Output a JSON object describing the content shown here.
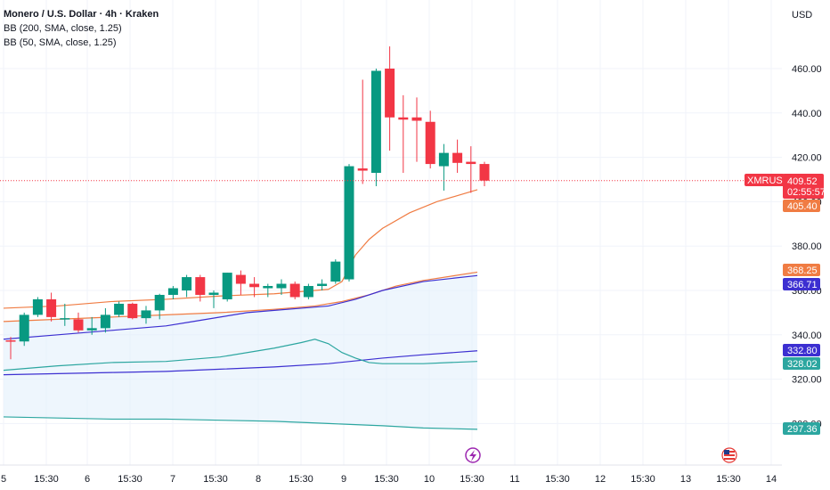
{
  "header": {
    "symbol_line": "Monero / U.S. Dollar · 4h · Kraken",
    "indicator_1": "BB (200, SMA, close, 1.25)",
    "indicator_2": "BB (50, SMA, close, 1.25)"
  },
  "axis": {
    "currency": "USD",
    "y_ticks": [
      "460.00",
      "440.00",
      "420.00",
      "400.00",
      "380.00",
      "360.00",
      "340.00",
      "320.00",
      "300.00"
    ],
    "x_ticks": [
      "5",
      "15:30",
      "6",
      "15:30",
      "7",
      "15:30",
      "8",
      "15:30",
      "9",
      "15:30",
      "10",
      "15:30",
      "11",
      "15:30",
      "12",
      "15:30",
      "13",
      "15:30",
      "14"
    ]
  },
  "badges": {
    "symbol": "XMRUSD",
    "last_price": "409.52",
    "countdown": "02:55:57",
    "bb50_upper": "405.40",
    "bb200_upper": "368.25",
    "bb50_mid": "366.71",
    "bb200_mid": "332.80",
    "bb50_lower": "328.02",
    "bb200_lower": "297.36"
  },
  "colors": {
    "up": "#089981",
    "down": "#f23645",
    "bb50": "#2ca6a0",
    "bb200": "#f07c43",
    "bbmid": "#3c2fd1",
    "fill": "#e3f0fb",
    "grid": "#f0f3fa",
    "last": "#f23645"
  },
  "events": {
    "event_icon": "lightning-icon",
    "flag_icon": "us-flag-icon"
  },
  "chart_data": {
    "type": "candlestick",
    "x_ticks": [
      "5",
      "15:30",
      "6",
      "15:30",
      "7",
      "15:30",
      "8",
      "15:30",
      "9",
      "15:30",
      "10",
      "15:30",
      "11",
      "15:30",
      "12",
      "15:30",
      "13",
      "15:30",
      "14"
    ],
    "ylim": [
      290,
      475
    ],
    "candles": [
      {
        "o": 337.5,
        "h": 339.0,
        "l": 329.0,
        "c": 337.0
      },
      {
        "o": 337.0,
        "h": 350.0,
        "l": 335.0,
        "c": 349.0
      },
      {
        "o": 349.0,
        "h": 357.0,
        "l": 348.0,
        "c": 356.0
      },
      {
        "o": 356.0,
        "h": 359.0,
        "l": 346.0,
        "c": 348.0
      },
      {
        "o": 347.0,
        "h": 354.0,
        "l": 344.0,
        "c": 347.5
      },
      {
        "o": 347.0,
        "h": 350.0,
        "l": 341.0,
        "c": 342.0
      },
      {
        "o": 342.0,
        "h": 348.0,
        "l": 340.0,
        "c": 343.0
      },
      {
        "o": 343.0,
        "h": 352.0,
        "l": 341.0,
        "c": 349.0
      },
      {
        "o": 349.0,
        "h": 355.0,
        "l": 348.0,
        "c": 354.0
      },
      {
        "o": 354.0,
        "h": 354.5,
        "l": 347.0,
        "c": 347.5
      },
      {
        "o": 347.5,
        "h": 353.0,
        "l": 345.0,
        "c": 351.0
      },
      {
        "o": 351.0,
        "h": 358.5,
        "l": 347.0,
        "c": 358.0
      },
      {
        "o": 358.0,
        "h": 362.0,
        "l": 356.0,
        "c": 361.0
      },
      {
        "o": 360.0,
        "h": 367.0,
        "l": 357.0,
        "c": 366.0
      },
      {
        "o": 366.0,
        "h": 367.0,
        "l": 355.0,
        "c": 358.0
      },
      {
        "o": 358.0,
        "h": 360.0,
        "l": 352.0,
        "c": 359.0
      },
      {
        "o": 356.0,
        "h": 368.0,
        "l": 355.0,
        "c": 368.0
      },
      {
        "o": 367.0,
        "h": 369.0,
        "l": 358.0,
        "c": 363.0
      },
      {
        "o": 363.0,
        "h": 366.0,
        "l": 357.0,
        "c": 361.5
      },
      {
        "o": 361.0,
        "h": 363.0,
        "l": 357.0,
        "c": 362.0
      },
      {
        "o": 361.0,
        "h": 365.0,
        "l": 358.0,
        "c": 363.0
      },
      {
        "o": 363.0,
        "h": 364.0,
        "l": 356.0,
        "c": 357.0
      },
      {
        "o": 357.0,
        "h": 363.0,
        "l": 356.0,
        "c": 362.0
      },
      {
        "o": 362.0,
        "h": 365.0,
        "l": 360.0,
        "c": 363.0
      },
      {
        "o": 364.0,
        "h": 374.0,
        "l": 363.0,
        "c": 373.0
      },
      {
        "o": 365.0,
        "h": 417.0,
        "l": 364.0,
        "c": 416.0
      },
      {
        "o": 415.0,
        "h": 455.0,
        "l": 408.0,
        "c": 414.0
      },
      {
        "o": 413.0,
        "h": 460.0,
        "l": 407.0,
        "c": 459.0
      },
      {
        "o": 460.0,
        "h": 470.0,
        "l": 423.0,
        "c": 438.0
      },
      {
        "o": 438.0,
        "h": 448.0,
        "l": 413.0,
        "c": 437.0
      },
      {
        "o": 438.0,
        "h": 447.0,
        "l": 418.0,
        "c": 436.5
      },
      {
        "o": 436.0,
        "h": 441.0,
        "l": 415.0,
        "c": 417.0
      },
      {
        "o": 416.0,
        "h": 426.0,
        "l": 405.0,
        "c": 422.0
      },
      {
        "o": 422.0,
        "h": 428.0,
        "l": 413.0,
        "c": 417.5
      },
      {
        "o": 418.0,
        "h": 425.0,
        "l": 404.0,
        "c": 417.0
      },
      {
        "o": 417.0,
        "h": 418.0,
        "l": 407.0,
        "c": 409.5
      }
    ],
    "bb50": {
      "upper": [
        [
          0,
          352
        ],
        [
          4,
          353
        ],
        [
          8,
          355
        ],
        [
          12,
          356
        ],
        [
          16,
          357.5
        ],
        [
          20,
          358.5
        ],
        [
          24,
          360.5
        ],
        [
          25,
          364
        ],
        [
          26,
          376
        ],
        [
          27,
          383
        ],
        [
          28,
          388
        ],
        [
          30,
          395
        ],
        [
          32,
          400
        ],
        [
          35,
          405.4
        ]
      ],
      "middle": [
        [
          0,
          338
        ],
        [
          4,
          340
        ],
        [
          8,
          342
        ],
        [
          12,
          344
        ],
        [
          14,
          346
        ],
        [
          16,
          348
        ],
        [
          18,
          350
        ],
        [
          20,
          351
        ],
        [
          22,
          352
        ],
        [
          24,
          353
        ],
        [
          26,
          356
        ],
        [
          28,
          360
        ],
        [
          31,
          364
        ],
        [
          35,
          366.7
        ]
      ],
      "lower": [
        [
          0,
          324
        ],
        [
          4,
          326
        ],
        [
          8,
          327.5
        ],
        [
          12,
          328
        ],
        [
          16,
          330
        ],
        [
          20,
          334
        ],
        [
          22,
          336.5
        ],
        [
          23,
          338
        ],
        [
          24,
          336
        ],
        [
          25,
          332
        ],
        [
          26,
          329.5
        ],
        [
          27,
          327.5
        ],
        [
          28,
          327
        ],
        [
          31,
          327
        ],
        [
          35,
          328
        ]
      ]
    },
    "bb200": {
      "upper": [
        [
          0,
          346
        ],
        [
          4,
          347
        ],
        [
          8,
          348
        ],
        [
          12,
          349
        ],
        [
          16,
          350
        ],
        [
          20,
          351.5
        ],
        [
          23,
          353
        ],
        [
          25,
          355
        ],
        [
          27,
          358
        ],
        [
          29,
          362
        ],
        [
          31,
          364.5
        ],
        [
          35,
          368.25
        ]
      ],
      "middle": [
        [
          0,
          322
        ],
        [
          4,
          322.5
        ],
        [
          8,
          323
        ],
        [
          12,
          323.5
        ],
        [
          16,
          324.5
        ],
        [
          20,
          325.5
        ],
        [
          24,
          327
        ],
        [
          28,
          329.5
        ],
        [
          31,
          331
        ],
        [
          35,
          332.8
        ]
      ],
      "lower": [
        [
          0,
          303
        ],
        [
          4,
          302.5
        ],
        [
          8,
          302
        ],
        [
          12,
          302
        ],
        [
          16,
          301.5
        ],
        [
          20,
          301
        ],
        [
          24,
          300
        ],
        [
          28,
          299
        ],
        [
          31,
          298
        ],
        [
          35,
          297.4
        ]
      ]
    },
    "last_price": 409.52
  }
}
